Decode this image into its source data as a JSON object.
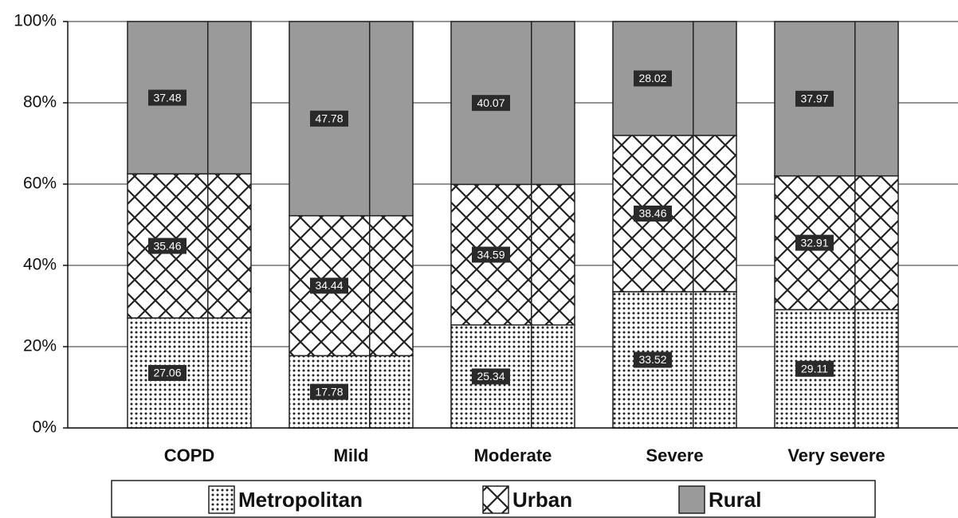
{
  "chart_data": {
    "type": "stacked_bar_percent",
    "categories": [
      "COPD",
      "Mild",
      "Moderate",
      "Severe",
      "Very severe"
    ],
    "series": [
      {
        "name": "Metropolitan",
        "color": "#ffffff",
        "pattern": "dots",
        "values": [
          27.06,
          17.78,
          25.34,
          33.52,
          29.11
        ]
      },
      {
        "name": "Urban",
        "color": "#ffffff",
        "pattern": "crosshatch",
        "values": [
          35.46,
          34.44,
          34.59,
          38.46,
          32.91
        ]
      },
      {
        "name": "Rural",
        "color": "#9a9a9a",
        "pattern": "solid",
        "values": [
          37.48,
          47.78,
          40.07,
          28.02,
          37.97
        ]
      }
    ],
    "ylim": [
      0,
      100
    ],
    "yticks": [
      {
        "value": 0,
        "label": "0%"
      },
      {
        "value": 20,
        "label": "20%"
      },
      {
        "value": 40,
        "label": "40%"
      },
      {
        "value": 60,
        "label": "60%"
      },
      {
        "value": 80,
        "label": "80%"
      },
      {
        "value": 100,
        "label": "100%"
      }
    ],
    "grid": true,
    "legend": "bottom"
  }
}
